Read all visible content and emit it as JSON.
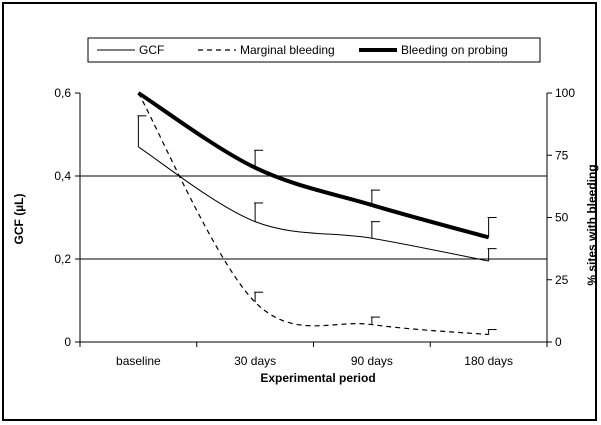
{
  "chart_data": {
    "type": "line",
    "categories": [
      "baseline",
      "30 days",
      "90 days",
      "180 days"
    ],
    "xlabel": "Experimental period",
    "ylabel_left": "GCF (µL)",
    "ylabel_right": "% sites with bleeding",
    "ylim_left": [
      0,
      0.6
    ],
    "ylim_right": [
      0,
      100
    ],
    "yticks_left": [
      "0",
      "0,2",
      "0,4",
      "0,6"
    ],
    "yticks_right": [
      "0",
      "25",
      "50",
      "75",
      "100"
    ],
    "grid": true,
    "legend_position": "top",
    "series": [
      {
        "name": "GCF",
        "axis": "left",
        "style": "thin-solid",
        "values": [
          0.47,
          0.29,
          0.25,
          0.195
        ],
        "error_upper": [
          0.545,
          0.335,
          0.29,
          0.225
        ]
      },
      {
        "name": "Marginal bleeding",
        "axis": "right",
        "style": "dashed",
        "values": [
          100,
          16,
          7,
          3
        ],
        "error_upper": [
          100,
          20,
          10,
          5
        ]
      },
      {
        "name": "Bleeding on probing",
        "axis": "right",
        "style": "thick-solid",
        "values": [
          100,
          70,
          55,
          42
        ],
        "error_upper": [
          100,
          77,
          61,
          50
        ]
      }
    ]
  }
}
